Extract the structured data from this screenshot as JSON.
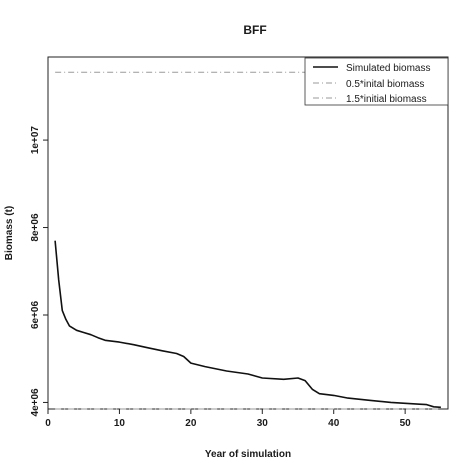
{
  "chart_data": {
    "type": "line",
    "title": "BFF",
    "xlabel": "Year of simulation",
    "ylabel": "Biomass (t)",
    "xlim": [
      0,
      56
    ],
    "ylim": [
      3850000,
      11900000
    ],
    "xticks": [
      0,
      10,
      20,
      30,
      40,
      50
    ],
    "yticks": [
      4000000,
      6000000,
      8000000,
      10000000
    ],
    "ytick_labels": [
      "4e+06",
      "6e+06",
      "8e+06",
      "1e+07"
    ],
    "grid": false,
    "legend_position": "top-right",
    "series": [
      {
        "name": "Simulated biomass",
        "style": "solid",
        "color": "#111111",
        "x": [
          1,
          1.5,
          2,
          2.5,
          3,
          4,
          5,
          6,
          7,
          8,
          10,
          12,
          14,
          16,
          18,
          19,
          20,
          22,
          25,
          28,
          30,
          33,
          35,
          36,
          37,
          38,
          39,
          40,
          42,
          45,
          48,
          50,
          52,
          53,
          54,
          55
        ],
        "y": [
          7700000,
          6800000,
          6100000,
          5900000,
          5750000,
          5650000,
          5600000,
          5550000,
          5480000,
          5420000,
          5380000,
          5320000,
          5250000,
          5180000,
          5120000,
          5050000,
          4900000,
          4820000,
          4720000,
          4650000,
          4560000,
          4530000,
          4560000,
          4500000,
          4300000,
          4200000,
          4180000,
          4160000,
          4100000,
          4050000,
          4000000,
          3980000,
          3960000,
          3950000,
          3900000,
          3890000
        ]
      },
      {
        "name": "0.5*inital biomass",
        "style": "dashdot",
        "color": "#9a9a9a",
        "constant": 3850000
      },
      {
        "name": "1.5*initial biomass",
        "style": "dashdot",
        "color": "#9a9a9a",
        "constant": 11550000
      }
    ]
  }
}
